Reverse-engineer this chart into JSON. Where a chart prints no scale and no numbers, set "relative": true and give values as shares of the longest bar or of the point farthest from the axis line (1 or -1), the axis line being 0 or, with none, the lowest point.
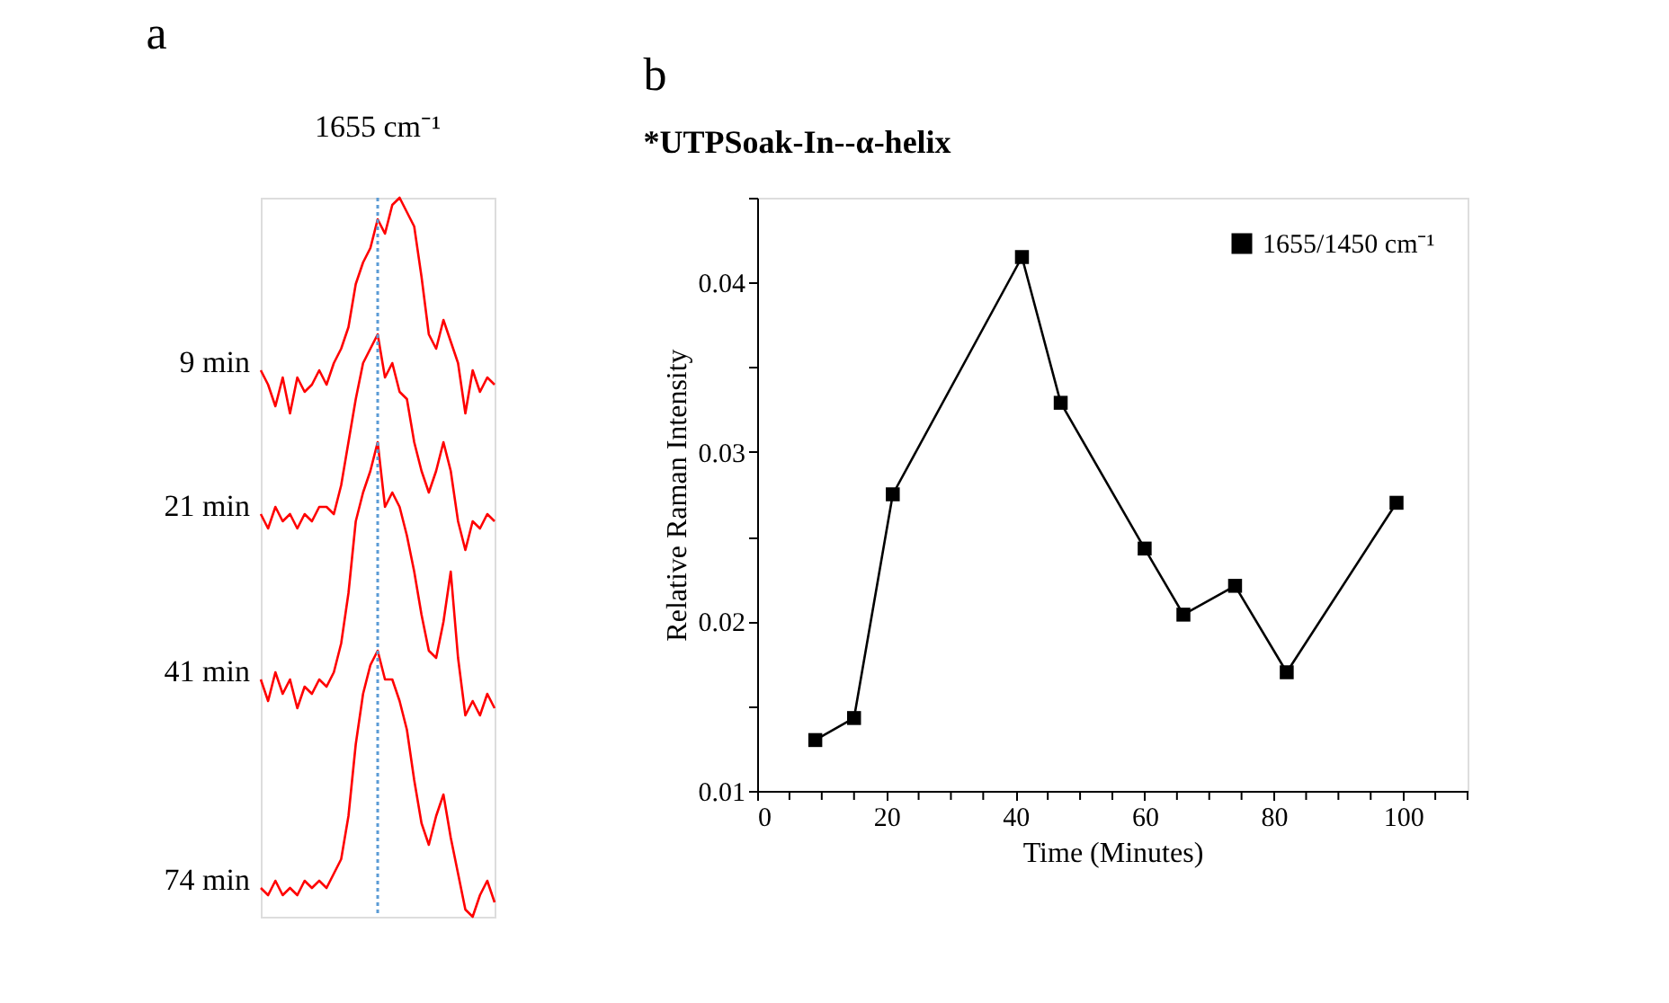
{
  "chart_data": [
    {
      "type": "line",
      "title": "a",
      "relative": true,
      "grid": false,
      "categories": [
        null,
        null,
        null,
        null,
        null,
        null,
        null,
        null,
        null,
        null,
        null,
        null,
        null,
        null,
        null,
        null,
        null,
        null,
        null,
        null,
        null,
        null,
        null,
        null,
        null,
        null,
        null,
        null,
        null,
        null,
        null,
        null,
        null
      ],
      "series": [
        {
          "name": "9 min",
          "color": "#ff0000",
          "values": [
            0.76,
            0.74,
            0.71,
            0.75,
            0.7,
            0.75,
            0.73,
            0.74,
            0.76,
            0.74,
            0.77,
            0.79,
            0.82,
            0.88,
            0.91,
            0.93,
            0.97,
            0.95,
            0.99,
            1.0,
            0.98,
            0.96,
            0.89,
            0.81,
            0.79,
            0.83,
            0.8,
            0.77,
            0.7,
            0.76,
            0.73,
            0.75,
            0.74
          ]
        },
        {
          "name": "21 min",
          "color": "#ff0000",
          "values": [
            0.56,
            0.54,
            0.57,
            0.55,
            0.56,
            0.54,
            0.56,
            0.55,
            0.57,
            0.57,
            0.56,
            0.6,
            0.66,
            0.72,
            0.77,
            0.79,
            0.81,
            0.75,
            0.77,
            0.73,
            0.72,
            0.66,
            0.62,
            0.59,
            0.62,
            0.66,
            0.62,
            0.55,
            0.51,
            0.55,
            0.54,
            0.56,
            0.55
          ]
        },
        {
          "name": "41 min",
          "color": "#ff0000",
          "values": [
            0.33,
            0.3,
            0.34,
            0.31,
            0.33,
            0.29,
            0.32,
            0.31,
            0.33,
            0.32,
            0.34,
            0.38,
            0.45,
            0.55,
            0.59,
            0.62,
            0.66,
            0.57,
            0.59,
            0.57,
            0.53,
            0.48,
            0.42,
            0.37,
            0.36,
            0.41,
            0.48,
            0.36,
            0.28,
            0.3,
            0.28,
            0.31,
            0.29
          ]
        },
        {
          "name": "74 min",
          "color": "#ff0000",
          "values": [
            0.04,
            0.03,
            0.05,
            0.03,
            0.04,
            0.03,
            0.05,
            0.04,
            0.05,
            0.04,
            0.06,
            0.08,
            0.14,
            0.24,
            0.31,
            0.35,
            0.37,
            0.33,
            0.33,
            0.3,
            0.26,
            0.19,
            0.13,
            0.1,
            0.14,
            0.17,
            0.11,
            0.06,
            0.01,
            0.0,
            0.03,
            0.05,
            0.02
          ]
        }
      ],
      "annotations": [
        "1655 cm⁻¹"
      ]
    },
    {
      "type": "line",
      "title": "b",
      "subtitle": "*UTPSoak-In--α-helix",
      "xlabel": "Time (Minutes)",
      "ylabel": "Relative Raman Intensity",
      "x": [
        9,
        15,
        21,
        41,
        47,
        60,
        66,
        74,
        82,
        99
      ],
      "series": [
        {
          "name": "1655/1450 cm⁻¹",
          "color": "#000000",
          "values": [
            0.013,
            0.0143,
            0.0275,
            0.0415,
            0.0329,
            0.0243,
            0.0204,
            0.0221,
            0.017,
            0.027
          ]
        }
      ],
      "xlim": [
        0,
        110
      ],
      "ylim": [
        0.01,
        0.045
      ],
      "xticks": [
        0,
        {
          "value": 5,
          "label": null
        },
        {
          "value": 10,
          "label": null
        },
        {
          "value": 15,
          "label": null
        },
        20,
        {
          "value": 25,
          "label": null
        },
        {
          "value": 30,
          "label": null
        },
        {
          "value": 35,
          "label": null
        },
        40,
        {
          "value": 45,
          "label": null
        },
        {
          "value": 50,
          "label": null
        },
        {
          "value": 55,
          "label": null
        },
        60,
        {
          "value": 65,
          "label": null
        },
        {
          "value": 70,
          "label": null
        },
        {
          "value": 75,
          "label": null
        },
        80,
        {
          "value": 85,
          "label": null
        },
        {
          "value": 90,
          "label": null
        },
        {
          "value": 95,
          "label": null
        },
        100,
        {
          "value": 105,
          "label": null
        },
        {
          "value": 110,
          "label": null
        }
      ],
      "yticks": [
        0.01,
        {
          "value": 0.015,
          "label": null
        },
        0.02,
        {
          "value": 0.025,
          "label": null
        },
        0.03,
        {
          "value": 0.035,
          "label": null
        },
        0.04,
        {
          "value": 0.045,
          "label": null
        }
      ],
      "marker": "square",
      "legend": "top right",
      "grid": false
    }
  ]
}
